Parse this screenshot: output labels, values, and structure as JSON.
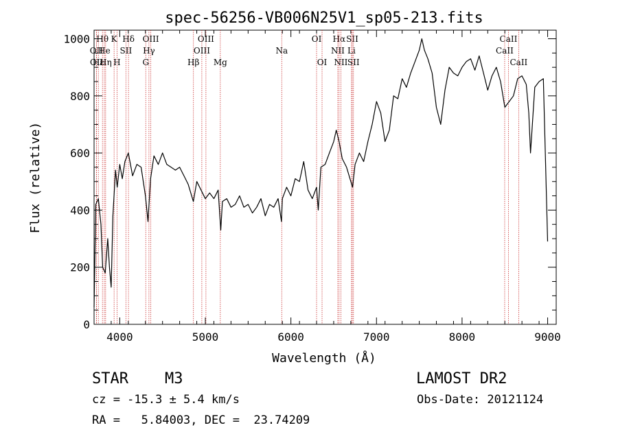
{
  "chart_data": {
    "type": "line",
    "title": "spec-56256-VB006N25V1_sp05-213.fits",
    "xlabel": "Wavelength (Å)",
    "ylabel": "Flux (relative)",
    "xlim": [
      3700,
      9100
    ],
    "ylim": [
      0,
      1030
    ],
    "xticks": [
      4000,
      5000,
      6000,
      7000,
      8000,
      9000
    ],
    "yticks": [
      0,
      200,
      400,
      600,
      800,
      1000
    ],
    "line_color": "#000000",
    "marker_color": "#cc3333",
    "series": [
      {
        "x": [
          3700,
          3720,
          3750,
          3780,
          3800,
          3830,
          3860,
          3880,
          3900,
          3920,
          3950,
          3970,
          4000,
          4030,
          4060,
          4100,
          4150,
          4200,
          4250,
          4300,
          4330,
          4360,
          4400,
          4450,
          4500,
          4550,
          4600,
          4650,
          4700,
          4750,
          4800,
          4860,
          4900,
          4950,
          5000,
          5050,
          5100,
          5150,
          5180,
          5200,
          5250,
          5300,
          5350,
          5400,
          5450,
          5500,
          5550,
          5600,
          5650,
          5700,
          5750,
          5800,
          5850,
          5890,
          5900,
          5950,
          6000,
          6050,
          6100,
          6150,
          6200,
          6250,
          6300,
          6320,
          6350,
          6400,
          6450,
          6500,
          6530,
          6563,
          6600,
          6650,
          6700,
          6720,
          6750,
          6800,
          6850,
          6900,
          6950,
          7000,
          7050,
          7100,
          7150,
          7200,
          7250,
          7300,
          7350,
          7400,
          7450,
          7500,
          7530,
          7560,
          7600,
          7650,
          7700,
          7750,
          7800,
          7850,
          7900,
          7950,
          8000,
          8050,
          8100,
          8150,
          8200,
          8250,
          8300,
          8350,
          8400,
          8450,
          8500,
          8550,
          8600,
          8650,
          8700,
          8750,
          8780,
          8800,
          8850,
          8900,
          8950,
          9000
        ],
        "y": [
          60,
          420,
          440,
          350,
          200,
          180,
          300,
          200,
          130,
          380,
          540,
          480,
          560,
          510,
          570,
          600,
          520,
          560,
          550,
          450,
          360,
          510,
          590,
          560,
          600,
          560,
          550,
          540,
          550,
          520,
          490,
          430,
          500,
          470,
          440,
          460,
          440,
          470,
          330,
          430,
          440,
          410,
          420,
          450,
          410,
          420,
          390,
          410,
          440,
          380,
          420,
          410,
          440,
          360,
          440,
          480,
          450,
          510,
          500,
          570,
          470,
          440,
          480,
          400,
          550,
          560,
          600,
          640,
          680,
          640,
          580,
          550,
          500,
          480,
          560,
          600,
          570,
          640,
          700,
          780,
          740,
          640,
          680,
          800,
          790,
          860,
          830,
          880,
          920,
          960,
          1000,
          960,
          930,
          880,
          760,
          700,
          820,
          900,
          880,
          870,
          900,
          920,
          930,
          890,
          940,
          880,
          820,
          870,
          900,
          850,
          760,
          780,
          800,
          860,
          870,
          840,
          740,
          600,
          830,
          850,
          860,
          290
        ]
      }
    ],
    "lines": [
      {
        "label": "Hθ",
        "x": 3798,
        "row": 0
      },
      {
        "label": "OII",
        "x": 3727,
        "row": 1
      },
      {
        "label": "OII",
        "x": 3729,
        "row": 2
      },
      {
        "label": "Hε",
        "x": 3750,
        "row": 2
      },
      {
        "label": "He",
        "x": 3820,
        "row": 1
      },
      {
        "label": "Hη",
        "x": 3835,
        "row": 2
      },
      {
        "label": "K",
        "x": 3934,
        "row": 0
      },
      {
        "label": "H",
        "x": 3968,
        "row": 2
      },
      {
        "label": "SII",
        "x": 4072,
        "row": 1
      },
      {
        "label": "Hδ",
        "x": 4102,
        "row": 0
      },
      {
        "label": "G",
        "x": 4304,
        "row": 2
      },
      {
        "label": "OIII",
        "x": 4363,
        "row": 0
      },
      {
        "label": "Hγ",
        "x": 4341,
        "row": 1
      },
      {
        "label": "Hβ",
        "x": 4861,
        "row": 2
      },
      {
        "label": "OIII",
        "x": 4959,
        "row": 1
      },
      {
        "label": "OIII",
        "x": 5007,
        "row": 0
      },
      {
        "label": "Mg",
        "x": 5175,
        "row": 2
      },
      {
        "label": "Na",
        "x": 5893,
        "row": 1
      },
      {
        "label": "OI",
        "x": 6300,
        "row": 0
      },
      {
        "label": "OI",
        "x": 6364,
        "row": 2
      },
      {
        "label": "Hα",
        "x": 6563,
        "row": 0
      },
      {
        "label": "NII",
        "x": 6548,
        "row": 1
      },
      {
        "label": "NII",
        "x": 6584,
        "row": 2
      },
      {
        "label": "SII",
        "x": 6717,
        "row": 0
      },
      {
        "label": "Li",
        "x": 6708,
        "row": 1
      },
      {
        "label": "SII",
        "x": 6731,
        "row": 2
      },
      {
        "label": "CaII",
        "x": 8542,
        "row": 0
      },
      {
        "label": "CaII",
        "x": 8498,
        "row": 1
      },
      {
        "label": "CaII",
        "x": 8662,
        "row": 2
      }
    ]
  },
  "info": {
    "class_label": "STAR",
    "subclass": "M3",
    "survey": "LAMOST DR2",
    "cz": "cz = -15.3 ± 5.4 km/s",
    "obs_date": "Obs-Date: 20121124",
    "coords": "RA =   5.84003, DEC =  23.74209"
  }
}
